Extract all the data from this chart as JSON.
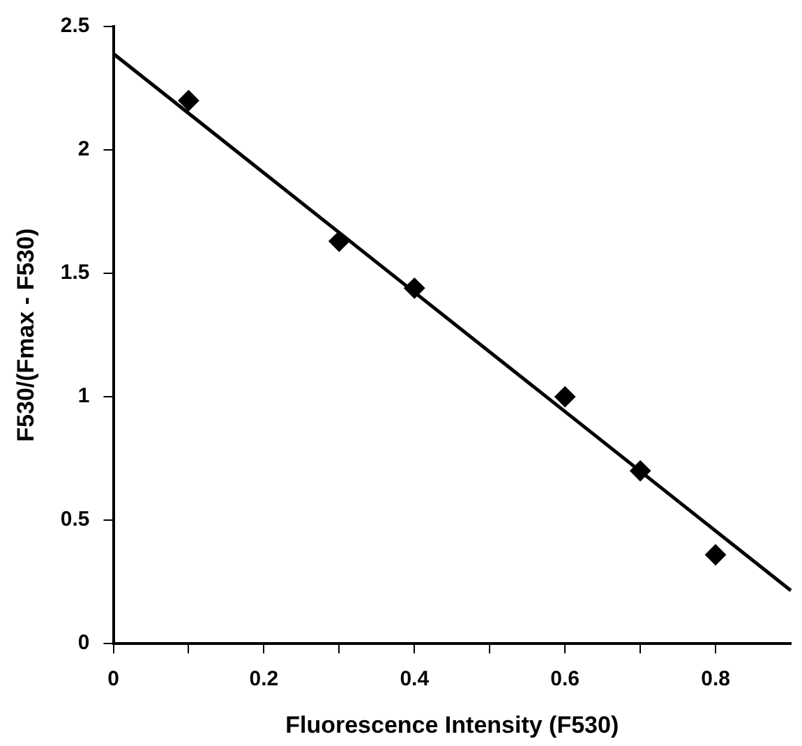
{
  "chart_data": {
    "type": "scatter",
    "xlabel": "Fluorescence Intensity (F530)",
    "ylabel": "F530/(Fmax - F530)",
    "marker": "diamond",
    "grid": false,
    "legend": false,
    "xlim": [
      0,
      0.9
    ],
    "ylim": [
      0,
      2.5
    ],
    "xticks": [
      0,
      {
        "value": 0.1,
        "label": null
      },
      0.2,
      {
        "value": 0.3,
        "label": null
      },
      0.4,
      {
        "value": 0.5,
        "label": null
      },
      0.6,
      {
        "value": 0.7,
        "label": null
      },
      0.8
    ],
    "yticks": [
      0,
      0.5,
      1,
      1.5,
      2,
      2.5
    ],
    "series": [
      {
        "color": "#000000",
        "x": [
          0.1,
          0.3,
          0.4,
          0.6,
          0.7,
          0.8
        ],
        "values": [
          2.2,
          1.63,
          1.44,
          1.0,
          0.7,
          0.36
        ]
      },
      {
        "type": "line",
        "color": "#000000",
        "marker": "none",
        "x": [
          0,
          0.9
        ],
        "values": [
          2.39,
          0.215
        ]
      }
    ]
  }
}
